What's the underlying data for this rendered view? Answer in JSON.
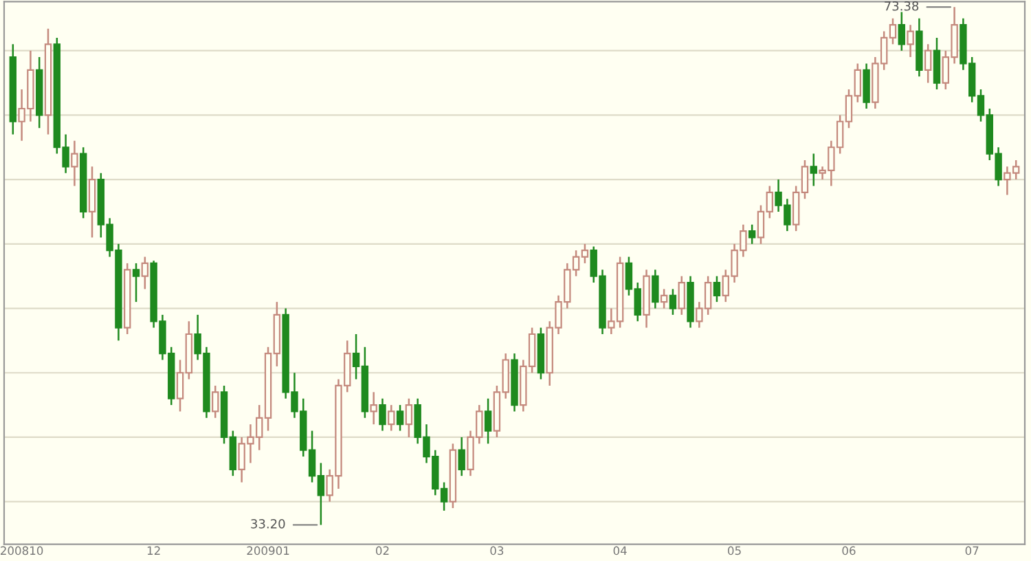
{
  "chart_data": {
    "type": "candlestick",
    "categories": [
      null,
      "200810",
      null,
      null,
      null,
      null,
      null,
      null,
      null,
      null,
      null,
      null,
      null,
      null,
      null,
      null,
      "12",
      null,
      null,
      null,
      null,
      null,
      null,
      null,
      null,
      null,
      null,
      null,
      null,
      "200901",
      null,
      null,
      null,
      null,
      null,
      null,
      null,
      null,
      null,
      null,
      null,
      null,
      "02",
      null,
      null,
      null,
      null,
      null,
      null,
      null,
      null,
      null,
      null,
      null,
      null,
      "03",
      null,
      null,
      null,
      null,
      null,
      null,
      null,
      null,
      null,
      null,
      null,
      null,
      null,
      "04",
      null,
      null,
      null,
      null,
      null,
      null,
      null,
      null,
      null,
      null,
      null,
      null,
      "05",
      null,
      null,
      null,
      null,
      null,
      null,
      null,
      null,
      null,
      null,
      null,
      null,
      "06",
      null,
      null,
      null,
      null,
      null,
      null,
      null,
      null,
      null,
      null,
      null,
      null,
      null,
      "07",
      null,
      null,
      null,
      null,
      null
    ],
    "ohlc": [
      [
        69.5,
        70.5,
        63.5,
        64.5
      ],
      [
        64.5,
        67,
        63,
        65.5
      ],
      [
        65.5,
        70,
        64.5,
        68.5
      ],
      [
        68.5,
        69.5,
        64,
        65
      ],
      [
        65,
        71.7,
        63.5,
        70.5
      ],
      [
        70.5,
        71,
        62,
        62.5
      ],
      [
        62.5,
        63.5,
        60.5,
        61
      ],
      [
        61,
        63,
        59.5,
        62
      ],
      [
        62,
        62.5,
        57,
        57.5
      ],
      [
        57.5,
        61,
        55.5,
        60
      ],
      [
        60,
        60.5,
        55.5,
        56.5
      ],
      [
        56.5,
        57,
        54,
        54.5
      ],
      [
        54.5,
        55,
        47.5,
        48.5
      ],
      [
        48.5,
        53.5,
        48,
        53
      ],
      [
        53,
        53.5,
        50.5,
        52.5
      ],
      [
        52.5,
        54,
        51.5,
        53.5
      ],
      [
        53.5,
        53.7,
        48.5,
        49
      ],
      [
        49,
        49.5,
        46,
        46.5
      ],
      [
        46.5,
        47,
        42.5,
        43
      ],
      [
        43,
        46,
        42,
        45
      ],
      [
        45,
        49,
        44.5,
        48
      ],
      [
        48,
        49.5,
        46,
        46.5
      ],
      [
        46.5,
        47,
        41.5,
        42
      ],
      [
        42,
        44,
        41.5,
        43.5
      ],
      [
        43.5,
        44,
        39.5,
        40
      ],
      [
        40,
        40.5,
        37,
        37.5
      ],
      [
        37.5,
        40,
        36.5,
        39.5
      ],
      [
        39.5,
        41,
        38,
        40
      ],
      [
        40,
        42.5,
        39,
        41.5
      ],
      [
        41.5,
        47,
        40.5,
        46.5
      ],
      [
        46.5,
        50.5,
        45.5,
        49.5
      ],
      [
        49.5,
        50,
        43,
        43.5
      ],
      [
        43.5,
        45,
        41.5,
        42
      ],
      [
        42,
        43,
        38.5,
        39
      ],
      [
        39,
        40.5,
        36.5,
        37
      ],
      [
        37,
        38,
        33.2,
        35.5
      ],
      [
        35.5,
        37.5,
        35,
        37
      ],
      [
        37,
        44.5,
        36,
        44
      ],
      [
        44,
        47.5,
        43.5,
        46.5
      ],
      [
        46.5,
        48,
        44.5,
        45.5
      ],
      [
        45.5,
        47,
        41.5,
        42
      ],
      [
        42,
        43.5,
        41,
        42.5
      ],
      [
        42.5,
        43,
        40.5,
        41
      ],
      [
        41,
        42.5,
        40.5,
        42
      ],
      [
        42,
        42.5,
        40.5,
        41
      ],
      [
        41,
        43,
        40,
        42.5
      ],
      [
        42.5,
        43,
        39.5,
        40
      ],
      [
        40,
        41,
        38,
        38.5
      ],
      [
        38.5,
        39,
        35.5,
        36
      ],
      [
        36,
        36.5,
        34.3,
        35
      ],
      [
        35,
        39.5,
        34.5,
        39
      ],
      [
        39,
        40,
        37,
        37.5
      ],
      [
        37.5,
        40.5,
        37,
        40
      ],
      [
        40,
        42.5,
        39.5,
        42
      ],
      [
        42,
        43,
        39.5,
        40.5
      ],
      [
        40.5,
        44,
        40,
        43.5
      ],
      [
        43.5,
        46.5,
        43,
        46
      ],
      [
        46,
        46.5,
        42,
        42.5
      ],
      [
        42.5,
        46,
        42,
        45.5
      ],
      [
        45.5,
        48.5,
        45,
        48
      ],
      [
        48,
        48.5,
        44.5,
        45
      ],
      [
        45,
        49,
        44,
        48.5
      ],
      [
        48.5,
        51,
        48,
        50.5
      ],
      [
        50.5,
        53.5,
        50,
        53
      ],
      [
        53,
        54.5,
        52.5,
        54
      ],
      [
        54,
        55,
        53.5,
        54.5
      ],
      [
        54.5,
        54.8,
        52,
        52.5
      ],
      [
        52.5,
        53,
        48,
        48.5
      ],
      [
        48.5,
        50,
        48,
        49
      ],
      [
        49,
        54,
        48.5,
        53.5
      ],
      [
        53.5,
        54,
        51,
        51.5
      ],
      [
        51.5,
        52,
        49,
        49.5
      ],
      [
        49.5,
        53,
        48.5,
        52.5
      ],
      [
        52.5,
        53,
        50,
        50.5
      ],
      [
        50.5,
        51.5,
        50,
        51
      ],
      [
        51,
        51.5,
        49.5,
        50
      ],
      [
        50,
        52.5,
        49.5,
        52
      ],
      [
        52,
        52.5,
        48.5,
        49
      ],
      [
        49,
        50.5,
        48.5,
        50
      ],
      [
        50,
        52.5,
        49.5,
        52
      ],
      [
        52,
        52.5,
        50.5,
        51
      ],
      [
        51,
        53,
        50.5,
        52.5
      ],
      [
        52.5,
        55,
        52,
        54.5
      ],
      [
        54.5,
        56.5,
        54,
        56
      ],
      [
        56,
        56.5,
        55,
        55.5
      ],
      [
        55.5,
        58,
        55,
        57.5
      ],
      [
        57.5,
        59.5,
        57,
        59
      ],
      [
        59,
        60,
        57.5,
        58
      ],
      [
        58,
        58.5,
        56,
        56.5
      ],
      [
        56.5,
        59.5,
        56,
        59
      ],
      [
        59,
        61.5,
        58.5,
        61
      ],
      [
        61,
        62,
        59.5,
        60.5
      ],
      [
        60.5,
        61,
        60,
        60.7
      ],
      [
        60.7,
        63,
        59.5,
        62.5
      ],
      [
        62.5,
        65,
        62,
        64.5
      ],
      [
        64.5,
        67,
        64,
        66.5
      ],
      [
        66.5,
        69,
        66,
        68.5
      ],
      [
        68.5,
        69,
        65.5,
        66
      ],
      [
        66,
        69.5,
        65.5,
        69
      ],
      [
        69,
        71.5,
        68.5,
        71
      ],
      [
        71,
        72.5,
        70.5,
        72
      ],
      [
        72,
        73,
        70,
        70.5
      ],
      [
        70.5,
        72,
        69.5,
        71.5
      ],
      [
        71.5,
        72.5,
        68,
        68.5
      ],
      [
        68.5,
        70.5,
        67.5,
        70
      ],
      [
        70,
        71,
        67,
        67.5
      ],
      [
        67.5,
        70,
        67,
        69.5
      ],
      [
        69.5,
        73.38,
        69,
        72
      ],
      [
        72,
        72.5,
        68.5,
        69
      ],
      [
        69,
        69.5,
        66,
        66.5
      ],
      [
        66.5,
        67,
        64.5,
        65
      ],
      [
        65,
        65.5,
        61.5,
        62
      ],
      [
        62,
        62.5,
        59.5,
        60
      ],
      [
        60,
        61,
        58.8,
        60.5
      ],
      [
        60.5,
        61.5,
        60,
        61
      ]
    ],
    "colors": [
      "#1f8a1f",
      "#c4897d",
      "#c4897d",
      "#1f8a1f",
      "#c4897d",
      "#1f8a1f",
      "#1f8a1f",
      "#c4897d",
      "#1f8a1f",
      "#c4897d",
      "#1f8a1f",
      "#1f8a1f",
      "#1f8a1f",
      "#c4897d",
      "#1f8a1f",
      "#c4897d",
      "#1f8a1f",
      "#1f8a1f",
      "#1f8a1f",
      "#c4897d",
      "#c4897d",
      "#1f8a1f",
      "#1f8a1f",
      "#c4897d",
      "#1f8a1f",
      "#1f8a1f",
      "#c4897d",
      "#c4897d",
      "#c4897d",
      "#c4897d",
      "#c4897d",
      "#1f8a1f",
      "#1f8a1f",
      "#1f8a1f",
      "#1f8a1f",
      "#1f8a1f",
      "#c4897d",
      "#c4897d",
      "#c4897d",
      "#1f8a1f",
      "#1f8a1f",
      "#c4897d",
      "#1f8a1f",
      "#c4897d",
      "#1f8a1f",
      "#c4897d",
      "#1f8a1f",
      "#1f8a1f",
      "#1f8a1f",
      "#1f8a1f",
      "#c4897d",
      "#1f8a1f",
      "#c4897d",
      "#c4897d",
      "#1f8a1f",
      "#c4897d",
      "#c4897d",
      "#1f8a1f",
      "#c4897d",
      "#c4897d",
      "#1f8a1f",
      "#c4897d",
      "#c4897d",
      "#c4897d",
      "#c4897d",
      "#c4897d",
      "#1f8a1f",
      "#1f8a1f",
      "#c4897d",
      "#c4897d",
      "#1f8a1f",
      "#1f8a1f",
      "#c4897d",
      "#1f8a1f",
      "#c4897d",
      "#1f8a1f",
      "#c4897d",
      "#1f8a1f",
      "#c4897d",
      "#c4897d",
      "#1f8a1f",
      "#c4897d",
      "#c4897d",
      "#c4897d",
      "#1f8a1f",
      "#c4897d",
      "#c4897d",
      "#1f8a1f",
      "#1f8a1f",
      "#c4897d",
      "#c4897d",
      "#1f8a1f",
      "#c4897d",
      "#c4897d",
      "#c4897d",
      "#c4897d",
      "#c4897d",
      "#1f8a1f",
      "#c4897d",
      "#c4897d",
      "#c4897d",
      "#1f8a1f",
      "#c4897d",
      "#1f8a1f",
      "#c4897d",
      "#1f8a1f",
      "#c4897d",
      "#c4897d",
      "#1f8a1f",
      "#1f8a1f",
      "#1f8a1f",
      "#1f8a1f",
      "#1f8a1f",
      "#c4897d",
      "#c4897d"
    ],
    "ylim": [
      31.7,
      73.8
    ],
    "yticks": [
      {
        "value": 35,
        "label": null
      },
      {
        "value": 40,
        "label": null
      },
      {
        "value": 45,
        "label": null
      },
      {
        "value": 50,
        "label": null
      },
      {
        "value": 55,
        "label": null
      },
      {
        "value": 60,
        "label": null
      },
      {
        "value": 65,
        "label": null
      },
      {
        "value": 70,
        "label": null
      }
    ],
    "tick_labels": "x",
    "grid": "y",
    "annotations": [
      "73.38",
      "33.20"
    ]
  }
}
